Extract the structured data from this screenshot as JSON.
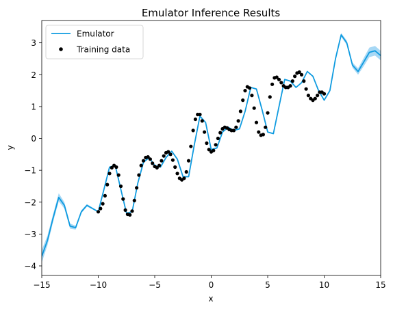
{
  "chart_data": {
    "type": "line",
    "title": "Emulator Inference Results",
    "xlabel": "x",
    "ylabel": "y",
    "xlim": [
      -15,
      15
    ],
    "ylim": [
      -4.3,
      3.7
    ],
    "xticks": [
      -15,
      -10,
      -5,
      0,
      5,
      10,
      15
    ],
    "xtick_labels": [
      "−15",
      "−10",
      "−5",
      "0",
      "5",
      "10",
      "15"
    ],
    "yticks": [
      -4,
      -3,
      -2,
      -1,
      0,
      1,
      2,
      3
    ],
    "ytick_labels": [
      "−4",
      "−3",
      "−2",
      "−1",
      "0",
      "1",
      "2",
      "3"
    ],
    "grid": false,
    "legend_position": "top-left",
    "colors": {
      "emulator": "#0f9be0",
      "band": "#5fb8ec",
      "training": "#000000"
    },
    "series": [
      {
        "name": "Emulator",
        "kind": "line",
        "x": [
          -15,
          -14.5,
          -14,
          -13.5,
          -13,
          -12.5,
          -12,
          -11.5,
          -11,
          -10.5,
          -10,
          -9.5,
          -9,
          -8.5,
          -8,
          -7.5,
          -7,
          -6.5,
          -6,
          -5.5,
          -5,
          -4.5,
          -4,
          -3.5,
          -3,
          -2.5,
          -2,
          -1.5,
          -1,
          -0.5,
          0,
          0.5,
          1,
          1.5,
          2,
          2.5,
          3,
          3.5,
          4,
          4.5,
          5,
          5.5,
          6,
          6.5,
          7,
          7.5,
          8,
          8.5,
          9,
          9.5,
          10,
          10.5,
          11,
          11.5,
          12,
          12.5,
          13,
          13.5,
          14,
          14.5,
          15
        ],
        "y": [
          -3.7,
          -3.2,
          -2.5,
          -1.85,
          -2.1,
          -2.75,
          -2.8,
          -2.3,
          -2.1,
          -2.2,
          -2.3,
          -1.6,
          -0.9,
          -0.85,
          -1.6,
          -2.35,
          -2.3,
          -1.4,
          -0.75,
          -0.6,
          -0.85,
          -0.9,
          -0.6,
          -0.4,
          -0.65,
          -1.2,
          -1.2,
          -0.2,
          0.7,
          0.5,
          -0.35,
          -0.3,
          0.2,
          0.35,
          0.25,
          0.3,
          0.85,
          1.6,
          1.55,
          0.9,
          0.2,
          0.15,
          1.0,
          1.85,
          1.8,
          1.6,
          1.75,
          2.1,
          1.95,
          1.5,
          1.2,
          1.5,
          2.5,
          3.25,
          3.0,
          2.3,
          2.1,
          2.4,
          2.7,
          2.75,
          2.6
        ]
      },
      {
        "name": "",
        "kind": "band",
        "x": [
          -15,
          -14.5,
          -14,
          -13.5,
          -13,
          -12.5,
          -12,
          -11.5,
          -11,
          -10.5,
          -10,
          -9.5,
          -9,
          -8.5,
          -8,
          -7.5,
          -7,
          -6.5,
          -6,
          -5.5,
          -5,
          -4.5,
          -4,
          -3.5,
          -3,
          -2.5,
          -2,
          -1.5,
          -1,
          -0.5,
          0,
          0.5,
          1,
          1.5,
          2,
          2.5,
          3,
          3.5,
          4,
          4.5,
          5,
          5.5,
          6,
          6.5,
          7,
          7.5,
          8,
          8.5,
          9,
          9.5,
          10,
          10.5,
          11,
          11.5,
          12,
          12.5,
          13,
          13.5,
          14,
          14.5,
          15
        ],
        "lower": [
          -3.9,
          -3.35,
          -2.62,
          -1.98,
          -2.2,
          -2.83,
          -2.86,
          -2.35,
          -2.14,
          -2.23,
          -2.32,
          -1.62,
          -0.92,
          -0.87,
          -1.62,
          -2.37,
          -2.32,
          -1.42,
          -0.77,
          -0.62,
          -0.87,
          -0.92,
          -0.62,
          -0.42,
          -0.67,
          -1.22,
          -1.22,
          -0.22,
          0.68,
          0.48,
          -0.37,
          -0.32,
          0.18,
          0.33,
          0.23,
          0.28,
          0.83,
          1.58,
          1.53,
          0.88,
          0.18,
          0.13,
          0.98,
          1.83,
          1.78,
          1.58,
          1.73,
          2.08,
          1.93,
          1.47,
          1.17,
          1.45,
          2.44,
          3.19,
          2.93,
          2.22,
          2.0,
          2.27,
          2.55,
          2.6,
          2.45
        ],
        "upper": [
          -3.5,
          -3.05,
          -2.38,
          -1.72,
          -2.0,
          -2.67,
          -2.74,
          -2.25,
          -2.06,
          -2.17,
          -2.28,
          -1.58,
          -0.88,
          -0.83,
          -1.58,
          -2.33,
          -2.28,
          -1.38,
          -0.73,
          -0.58,
          -0.83,
          -0.88,
          -0.58,
          -0.38,
          -0.63,
          -1.18,
          -1.18,
          -0.18,
          0.72,
          0.52,
          -0.33,
          -0.28,
          0.22,
          0.37,
          0.27,
          0.32,
          0.87,
          1.62,
          1.57,
          0.92,
          0.22,
          0.17,
          1.02,
          1.87,
          1.82,
          1.62,
          1.77,
          2.12,
          1.97,
          1.53,
          1.23,
          1.55,
          2.56,
          3.31,
          3.07,
          2.38,
          2.2,
          2.53,
          2.85,
          2.9,
          2.75
        ]
      },
      {
        "name": "Training data",
        "kind": "scatter",
        "x": [
          -10,
          -9.8,
          -9.6,
          -9.4,
          -9.2,
          -9.0,
          -8.8,
          -8.6,
          -8.4,
          -8.2,
          -8.0,
          -7.8,
          -7.6,
          -7.4,
          -7.2,
          -7.0,
          -6.8,
          -6.6,
          -6.4,
          -6.2,
          -6.0,
          -5.8,
          -5.6,
          -5.4,
          -5.2,
          -5.0,
          -4.8,
          -4.6,
          -4.4,
          -4.2,
          -4.0,
          -3.8,
          -3.6,
          -3.4,
          -3.2,
          -3.0,
          -2.8,
          -2.6,
          -2.4,
          -2.2,
          -2.0,
          -1.8,
          -1.6,
          -1.4,
          -1.2,
          -1.0,
          -0.8,
          -0.6,
          -0.4,
          -0.2,
          0.0,
          0.2,
          0.4,
          0.6,
          0.8,
          1.0,
          1.2,
          1.4,
          1.6,
          1.8,
          2.0,
          2.2,
          2.4,
          2.6,
          2.8,
          3.0,
          3.2,
          3.4,
          3.6,
          3.8,
          4.0,
          4.2,
          4.4,
          4.6,
          4.8,
          5.0,
          5.2,
          5.4,
          5.6,
          5.8,
          6.0,
          6.2,
          6.4,
          6.6,
          6.8,
          7.0,
          7.2,
          7.4,
          7.6,
          7.8,
          8.0,
          8.2,
          8.4,
          8.6,
          8.8,
          9.0,
          9.2,
          9.4,
          9.6,
          9.8,
          10.0
        ],
        "y": [
          -2.3,
          -2.2,
          -2.05,
          -1.8,
          -1.45,
          -1.1,
          -0.92,
          -0.85,
          -0.9,
          -1.15,
          -1.5,
          -1.9,
          -2.25,
          -2.38,
          -2.4,
          -2.28,
          -1.95,
          -1.55,
          -1.15,
          -0.85,
          -0.7,
          -0.6,
          -0.58,
          -0.65,
          -0.78,
          -0.88,
          -0.92,
          -0.85,
          -0.7,
          -0.55,
          -0.45,
          -0.42,
          -0.5,
          -0.68,
          -0.9,
          -1.1,
          -1.25,
          -1.3,
          -1.25,
          -1.05,
          -0.7,
          -0.25,
          0.25,
          0.6,
          0.75,
          0.75,
          0.55,
          0.2,
          -0.15,
          -0.35,
          -0.42,
          -0.38,
          -0.2,
          0.0,
          0.18,
          0.3,
          0.35,
          0.33,
          0.28,
          0.25,
          0.25,
          0.35,
          0.55,
          0.85,
          1.2,
          1.5,
          1.62,
          1.58,
          1.35,
          0.95,
          0.5,
          0.2,
          0.1,
          0.12,
          0.35,
          0.8,
          1.3,
          1.7,
          1.9,
          1.92,
          1.85,
          1.75,
          1.65,
          1.6,
          1.6,
          1.65,
          1.8,
          1.95,
          2.05,
          2.08,
          2.0,
          1.8,
          1.55,
          1.35,
          1.25,
          1.2,
          1.25,
          1.35,
          1.45,
          1.45,
          1.4
        ]
      }
    ]
  }
}
